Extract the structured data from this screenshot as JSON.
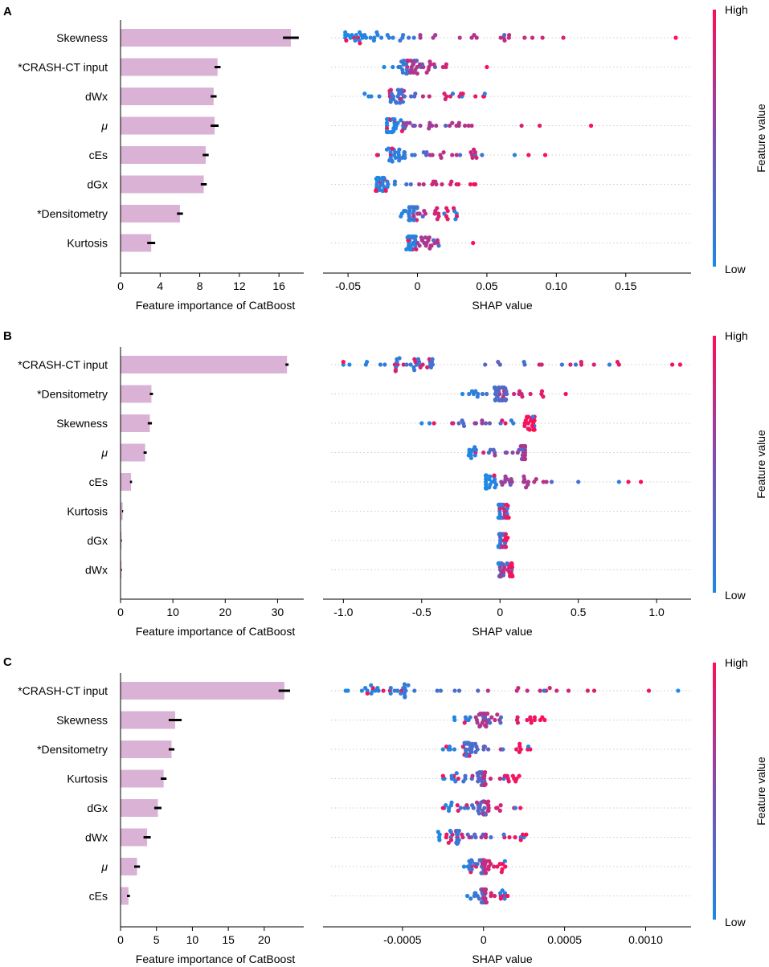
{
  "chart_data": [
    {
      "panel": "A",
      "type": "bar+beeswarm",
      "features": [
        "Skewness",
        "*CRASH-CT input",
        "dWx",
        "μ",
        "cEs",
        "dGx",
        "*Densitometry",
        "Kurtosis"
      ],
      "importance": [
        17.2,
        9.8,
        9.4,
        9.5,
        8.6,
        8.4,
        6.0,
        3.1
      ],
      "importance_err": [
        0.8,
        0.3,
        0.3,
        0.4,
        0.3,
        0.3,
        0.3,
        0.4
      ],
      "importance_axis": {
        "title": "Feature importance of CatBoost",
        "ticks": [
          0,
          4,
          8,
          12,
          16
        ],
        "tick_labels": [
          "0",
          "4",
          "8",
          "12",
          "16"
        ],
        "xlim": [
          0,
          18.5
        ]
      },
      "shap_axis": {
        "title": "SHAP value",
        "ticks": [
          -0.05,
          0,
          0.05,
          0.1,
          0.15
        ],
        "tick_labels": [
          "-0.05",
          "0",
          "0.05",
          "0.10",
          "0.15"
        ],
        "xlim": [
          -0.068,
          0.197
        ]
      },
      "shap_ranges": [
        {
          "min": -0.052,
          "max": 0.186,
          "cluster": -0.042,
          "outliers": [
            0.066,
            0.09,
            0.105,
            0.186
          ],
          "split": 0.0
        },
        {
          "min": -0.024,
          "max": 0.05,
          "cluster": -0.004,
          "outliers": [
            0.05
          ],
          "split": -0.005
        },
        {
          "min": -0.038,
          "max": 0.05,
          "cluster": -0.015,
          "outliers": [],
          "split": 0.0
        },
        {
          "min": -0.022,
          "max": 0.125,
          "cluster": -0.016,
          "outliers": [
            0.03,
            0.075,
            0.088,
            0.125
          ],
          "split": -0.01
        },
        {
          "min": -0.029,
          "max": 0.092,
          "cluster": -0.016,
          "outliers": [
            0.07,
            0.08,
            0.092
          ],
          "split": 0.005
        },
        {
          "min": -0.03,
          "max": 0.05,
          "cluster": -0.025,
          "outliers": [],
          "split": 0.0
        },
        {
          "min": -0.012,
          "max": 0.03,
          "cluster": -0.004,
          "outliers": [],
          "split": 0.0
        },
        {
          "min": -0.008,
          "max": 0.04,
          "cluster": -0.004,
          "outliers": [
            0.04
          ],
          "split": 0.0
        }
      ]
    },
    {
      "panel": "B",
      "type": "bar+beeswarm",
      "features": [
        "*CRASH-CT input",
        "*Densitometry",
        "Skewness",
        "μ",
        "cEs",
        "Kurtosis",
        "dGx",
        "dWx"
      ],
      "importance": [
        31.8,
        5.9,
        5.6,
        4.7,
        2.0,
        0.4,
        0.2,
        0.2
      ],
      "importance_err": [
        0.3,
        0.3,
        0.4,
        0.3,
        0.2,
        0.1,
        0.05,
        0.05
      ],
      "importance_axis": {
        "title": "Feature importance of CatBoost",
        "ticks": [
          0,
          10,
          20,
          30
        ],
        "tick_labels": [
          "0",
          "10",
          "20",
          "30"
        ],
        "xlim": [
          0,
          35
        ]
      },
      "shap_axis": {
        "title": "SHAP value",
        "ticks": [
          -1.0,
          -0.5,
          0,
          0.5,
          1.0
        ],
        "tick_labels": [
          "-1.0",
          "-0.5",
          "0",
          "0.5",
          "1.0"
        ],
        "xlim": [
          -1.13,
          1.22
        ]
      },
      "shap_ranges": [
        {
          "min": -1.0,
          "max": 1.15,
          "cluster": -0.55,
          "outliers": [
            -1.0,
            -0.85,
            0.45,
            0.6,
            0.75,
            1.1,
            1.15
          ],
          "split": 0.1
        },
        {
          "min": -0.24,
          "max": 0.42,
          "cluster": 0.0,
          "outliers": [
            0.42
          ],
          "split": 0.05
        },
        {
          "min": -0.5,
          "max": 0.22,
          "cluster": 0.2,
          "outliers": [],
          "split": 0.0
        },
        {
          "min": -0.2,
          "max": 0.16,
          "cluster": 0.16,
          "outliers": [],
          "split": 0.16
        },
        {
          "min": -0.09,
          "max": 0.9,
          "cluster": -0.09,
          "outliers": [
            0.5,
            0.76,
            0.82,
            0.9
          ],
          "split": 0.0
        },
        {
          "min": -0.01,
          "max": 0.06,
          "cluster": 0.0,
          "outliers": [],
          "split": 0.02
        },
        {
          "min": -0.01,
          "max": 0.05,
          "cluster": 0.0,
          "outliers": [],
          "split": 0.02
        },
        {
          "min": -0.01,
          "max": 0.08,
          "cluster": 0.0,
          "outliers": [],
          "split": 0.0
        }
      ]
    },
    {
      "panel": "C",
      "type": "bar+beeswarm",
      "features": [
        "*CRASH-CT input",
        "Skewness",
        "*Densitometry",
        "Kurtosis",
        "dGx",
        "dWx",
        "μ",
        "cEs"
      ],
      "importance": [
        22.8,
        7.6,
        7.1,
        6.0,
        5.2,
        3.7,
        2.3,
        1.1
      ],
      "importance_err": [
        0.8,
        0.9,
        0.4,
        0.4,
        0.5,
        0.5,
        0.4,
        0.2
      ],
      "importance_axis": {
        "title": "Feature importance of CatBoost",
        "ticks": [
          0,
          5,
          10,
          15,
          20
        ],
        "tick_labels": [
          "0",
          "5",
          "10",
          "15",
          "20"
        ],
        "xlim": [
          0,
          25.5
        ]
      },
      "shap_axis": {
        "title": "SHAP value",
        "ticks": [
          -0.0005,
          0,
          0.0005,
          0.001
        ],
        "tick_labels": [
          "-0.0005",
          "0",
          "0.0005",
          "0.0010"
        ],
        "xlim": [
          -0.00099,
          0.00128
        ]
      },
      "shap_ranges": [
        {
          "min": -0.00085,
          "max": 0.0012,
          "cluster": -0.0006,
          "outliers": [
            0.00102,
            0.0012
          ],
          "split": 0.0
        },
        {
          "min": -0.00018,
          "max": 0.00038,
          "cluster": 0.0,
          "outliers": [],
          "split": -5e-05
        },
        {
          "min": -0.00025,
          "max": 0.0003,
          "cluster": -0.0001,
          "outliers": [],
          "split": 0.0001
        },
        {
          "min": -0.00025,
          "max": 0.00025,
          "cluster": -2e-05,
          "outliers": [],
          "split": 0.0
        },
        {
          "min": -0.00025,
          "max": 0.0003,
          "cluster": 0.0,
          "outliers": [],
          "split": 0.0
        },
        {
          "min": -0.00028,
          "max": 0.00028,
          "cluster": -0.00018,
          "outliers": [],
          "split": 0.0
        },
        {
          "min": -0.00012,
          "max": 0.00014,
          "cluster": 0.0,
          "outliers": [],
          "split": 0.0
        },
        {
          "min": -0.0001,
          "max": 0.00015,
          "cluster": 0.0,
          "outliers": [],
          "split": 0.0
        }
      ]
    }
  ],
  "colorbar": {
    "high_label": "High",
    "low_label": "Low",
    "title": "Feature value"
  },
  "colors": {
    "bar": "#d9b2d6",
    "err": "#000000",
    "low": "#1e88e5",
    "high": "#ff0d57",
    "grid": "#cccccc"
  }
}
